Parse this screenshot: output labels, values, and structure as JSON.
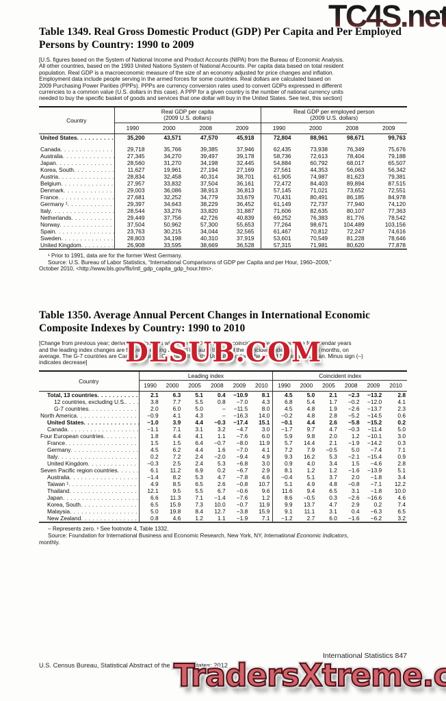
{
  "watermarks": {
    "top": "TC4S.net",
    "middle": "DLSUB.COM",
    "bottom": "TradersXtreme.com",
    "red": "#c6202c",
    "salmon": "#d2626a"
  },
  "table1349": {
    "title_line1": "Table 1349. Real Gross Domestic Product (GDP) Per Capita and Per Employed",
    "title_line2": "Persons by Country: 1990 to 2009",
    "intro_lines": [
      "[U.S. figures based on the System of National Income and Product Accounts (NIPA) from the Bureau of Economic Analysis.",
      "All other countries, based on the 1993 United Nations System of National Accounts. Per capita data based on total resident",
      "population. Real GDP is a macroeconomic measure of the size of an economy adjusted for price changes and inflation.",
      "Employment data include people serving in the armed forces for some countries. Real dollars are calculated based on",
      "2009 Purchasing Power Parities (PPPs). PPPs are currency conversion rates used to convert GDPs expressed in different",
      "currencies to a common value (U.S. dollars in this case). A PPP for a given country is the number of national currency units",
      "needed to buy the specific basket of goods and services that one dollar will buy in the United States. See text, this section]"
    ],
    "country_header": "Country",
    "group1_label": "Real GDP per capita",
    "group1_sub": "(2009 U.S. dollars)",
    "group2_label": "Real GDP per employed person",
    "group2_sub": "(2009 U.S. dollars)",
    "years": [
      "1990",
      "2000",
      "2008",
      "2009"
    ],
    "rows": [
      {
        "label": "United States",
        "bold": true,
        "values": [
          "35,200",
          "43,571",
          "47,570",
          "45,918",
          "72,804",
          "88,961",
          "98,671",
          "99,763"
        ]
      },
      {
        "label": "Canada",
        "values": [
          "29,718",
          "35,766",
          "39,385",
          "37,946",
          "62,435",
          "73,938",
          "76,349",
          "75,676"
        ]
      },
      {
        "label": "Australia",
        "values": [
          "27,345",
          "34,270",
          "39,497",
          "39,178",
          "58,736",
          "72,613",
          "78,404",
          "79,188"
        ]
      },
      {
        "label": "Japan",
        "values": [
          "28,560",
          "31,270",
          "34,198",
          "32,445",
          "54,884",
          "60,792",
          "68,017",
          "65,507"
        ]
      },
      {
        "label": "Korea, South",
        "values": [
          "11,627",
          "19,961",
          "27,194",
          "27,169",
          "27,561",
          "44,353",
          "56,063",
          "56,342"
        ]
      },
      {
        "label": "Austria",
        "values": [
          "28,834",
          "32,458",
          "40,314",
          "38,701",
          "61,905",
          "74,987",
          "81,623",
          "79,381"
        ]
      },
      {
        "label": "Belgium",
        "values": [
          "27,957",
          "33,832",
          "37,504",
          "36,161",
          "72,472",
          "84,403",
          "89,894",
          "87,515"
        ]
      },
      {
        "label": "Denmark",
        "values": [
          "29,003",
          "36,086",
          "38,913",
          "36,813",
          "57,145",
          "71,021",
          "73,652",
          "72,551"
        ]
      },
      {
        "label": "France",
        "values": [
          "27,681",
          "32,252",
          "34,779",
          "33,679",
          "70,431",
          "80,491",
          "86,185",
          "84,978"
        ]
      },
      {
        "label": "Germany ¹",
        "values": [
          "29,397",
          "34,643",
          "38,229",
          "36,452",
          "61,149",
          "72,737",
          "77,940",
          "74,120"
        ]
      },
      {
        "label": "Italy",
        "values": [
          "28,544",
          "33,276",
          "33,820",
          "31,887",
          "71,606",
          "82,635",
          "80,107",
          "77,363"
        ]
      },
      {
        "label": "Netherlands",
        "values": [
          "29,449",
          "37,756",
          "42,726",
          "40,839",
          "69,252",
          "76,383",
          "81,776",
          "78,542"
        ]
      },
      {
        "label": "Norway",
        "values": [
          "37,504",
          "50,962",
          "57,300",
          "55,653",
          "77,264",
          "98,671",
          "104,489",
          "103,156"
        ]
      },
      {
        "label": "Spain",
        "values": [
          "23,763",
          "30,215",
          "34,044",
          "32,565",
          "61,467",
          "70,812",
          "72,247",
          "74,616"
        ]
      },
      {
        "label": "Sweden",
        "values": [
          "28,803",
          "34,198",
          "40,310",
          "37,919",
          "53,601",
          "70,549",
          "81,228",
          "78,646"
        ]
      },
      {
        "label": "United Kingdom",
        "values": [
          "26,908",
          "33,595",
          "38,669",
          "36,528",
          "57,315",
          "71,981",
          "80,620",
          "77,878"
        ]
      }
    ],
    "footnote": "¹ Prior to 1991, data are for the former West Germany.",
    "source_line1": "Source: U.S. Bureau of Labor Statistics, “International Comparisons of GDP per Capita and per Hour, 1960–2009,”",
    "source_line2": "October 2010, <http://www.bls.gov/fls/intl_gdp_capita_gdp_hour.htm>."
  },
  "table1350": {
    "title_line1": "Table 1350. Average Annual Percent Changes in International Economic",
    "title_line2": "Composite Indexes by Country: 1990 to 2010",
    "intro_lines": [
      "[Change from previous year; derived from indexes with base 2000 = 100. The coincident index changes are for calendar years",
      "and the leading index changes are for years ending June 30 because they lead the coincident indexes by about 6 months, on",
      "average. The G-7 countries are Canada, France, Germany, Italy, the United Kingdom, the United States, and Japan. Minus sign (–)",
      "indicates decrease]"
    ],
    "country_header": "Country",
    "group1_label": "Leading index",
    "group2_label": "Coincident index",
    "years": [
      "1990",
      "2000",
      "2005",
      "2008",
      "2009",
      "2010"
    ],
    "rows": [
      {
        "label": "Total, 13 countries",
        "indent": 1,
        "bold": true,
        "values": [
          "2.1",
          "6.3",
          "5.1",
          "0.4",
          "−10.9",
          "8.1",
          "4.5",
          "5.0",
          "2.1",
          "−2.3",
          "−13.2",
          "2.8"
        ]
      },
      {
        "label": "12 countries, excluding U.S.",
        "indent": 2,
        "values": [
          "3.8",
          "7.7",
          "5.5",
          "0.8",
          "−7.0",
          "4.3",
          "6.8",
          "5.4",
          "1.7",
          "−0.2",
          "−12.0",
          "4.1"
        ]
      },
      {
        "label": "G-7 countries",
        "indent": 2,
        "values": [
          "2.0",
          "6.0",
          "5.0",
          "–",
          "−11.5",
          "8.0",
          "4.5",
          "4.8",
          "1.9",
          "−2.6",
          "−13.7",
          "2.3"
        ]
      },
      {
        "label": "North America",
        "indent": 0,
        "values": [
          "−0.9",
          "4.1",
          "4.3",
          "–",
          "−16.3",
          "14.0",
          "−0.2",
          "4.8",
          "2.8",
          "−5.2",
          "−14.5",
          "0.6"
        ]
      },
      {
        "label": "United States",
        "indent": 1,
        "bold": true,
        "values": [
          "−1.0",
          "3.9",
          "4.4",
          "−0.3",
          "−17.4",
          "15.1",
          "−0.1",
          "4.4",
          "2.6",
          "−5.8",
          "−15.2",
          "0.2"
        ]
      },
      {
        "label": "Canada",
        "indent": 1,
        "values": [
          "−1.1",
          "7.1",
          "3.1",
          "3.2",
          "−4.7",
          "3.0",
          "−1.7",
          "9.7",
          "4.7",
          "−0.3",
          "−11.4",
          "5.0"
        ]
      },
      {
        "label": "Four European countries",
        "indent": 0,
        "values": [
          "1.8",
          "4.4",
          "4.1",
          "1.1",
          "−7.6",
          "6.0",
          "5.9",
          "9.8",
          "2.0",
          "1.2",
          "−10.1",
          "3.0"
        ]
      },
      {
        "label": "France",
        "indent": 1,
        "values": [
          "1.5",
          "1.5",
          "6.4",
          "−0.7",
          "−8.0",
          "11.9",
          "5.7",
          "14.4",
          "2.1",
          "−1.9",
          "−14.2",
          "0.3"
        ]
      },
      {
        "label": "Germany",
        "indent": 1,
        "values": [
          "4.5",
          "6.2",
          "4.4",
          "1.6",
          "−7.0",
          "4.1",
          "7.2",
          "7.9",
          "−0.5",
          "5.0",
          "−7.4",
          "7.1"
        ]
      },
      {
        "label": "Italy",
        "indent": 1,
        "values": [
          "0.2",
          "7.2",
          "2.4",
          "−2.0",
          "−9.4",
          "4.9",
          "9.3",
          "16.2",
          "5.3",
          "−2.1",
          "−15.4",
          "0.9"
        ]
      },
      {
        "label": "United Kingdom",
        "indent": 1,
        "values": [
          "−0.3",
          "2.5",
          "2.4",
          "5.3",
          "−6.8",
          "3.0",
          "0.9",
          "4.0",
          "3.4",
          "1.5",
          "−4.6",
          "2.8"
        ]
      },
      {
        "label": "Seven Pacific region countries",
        "indent": 0,
        "values": [
          "6.1",
          "11.2",
          "6.9",
          "0.2",
          "−6.7",
          "2.9",
          "8.1",
          "1.2",
          "1.2",
          "−1.6",
          "−13.9",
          "5.1"
        ]
      },
      {
        "label": "Australia",
        "indent": 1,
        "values": [
          "−1.4",
          "8.2",
          "5.3",
          "4.7",
          "−7.8",
          "4.6",
          "−0.4",
          "5.1",
          "3.7",
          "2.0",
          "−1.8",
          "3.4"
        ]
      },
      {
        "label": "Taiwan ¹",
        "indent": 1,
        "values": [
          "4.9",
          "8.5",
          "6.5",
          "2.6",
          "−0.8",
          "10.7",
          "5.1",
          "4.9",
          "4.8",
          "−0.8",
          "−7.1",
          "12.2"
        ]
      },
      {
        "label": "Thailand",
        "indent": 1,
        "values": [
          "12.1",
          "9.5",
          "5.5",
          "6.7",
          "−0.6",
          "9.6",
          "11.6",
          "9.4",
          "6.5",
          "3.1",
          "−1.8",
          "10.0"
        ]
      },
      {
        "label": "Japan",
        "indent": 1,
        "values": [
          "6.6",
          "11.3",
          "7.1",
          "−1.4",
          "−7.6",
          "1.2",
          "8.6",
          "−0.5",
          "0.3",
          "−2.6",
          "−16.6",
          "4.6"
        ]
      },
      {
        "label": "Korea, South",
        "indent": 1,
        "values": [
          "6.5",
          "15.9",
          "7.3",
          "10.0",
          "−0.7",
          "11.9",
          "9.9",
          "13.7",
          "4.7",
          "2.9",
          "0.2",
          "7.4"
        ]
      },
      {
        "label": "Malaysia",
        "indent": 1,
        "values": [
          "5.0",
          "19.8",
          "8.4",
          "12.7",
          "−3.8",
          "15.9",
          "9.1",
          "11.1",
          "3.1",
          "0.4",
          "−6.3",
          "6.5"
        ]
      },
      {
        "label": "New Zealand",
        "indent": 1,
        "values": [
          "0.8",
          "4.6",
          "1.2",
          "1.1",
          "−1.9",
          "7.1",
          "−1.2",
          "2.7",
          "6.0",
          "−1.6",
          "−6.2",
          "3.2"
        ]
      }
    ],
    "footnote": "– Represents zero. ¹ See footnote 4, Table 1332.",
    "source_prefix": "Source: Foundation for International Business and Economic Research, New York, NY, ",
    "source_italic": "International Economic Indicators",
    "source_suffix": ",",
    "source_line2": "monthly."
  },
  "page_footer": {
    "right": "International Statistics  847",
    "left": "U.S. Census Bureau, Statistical Abstract of the United States: 2012"
  }
}
